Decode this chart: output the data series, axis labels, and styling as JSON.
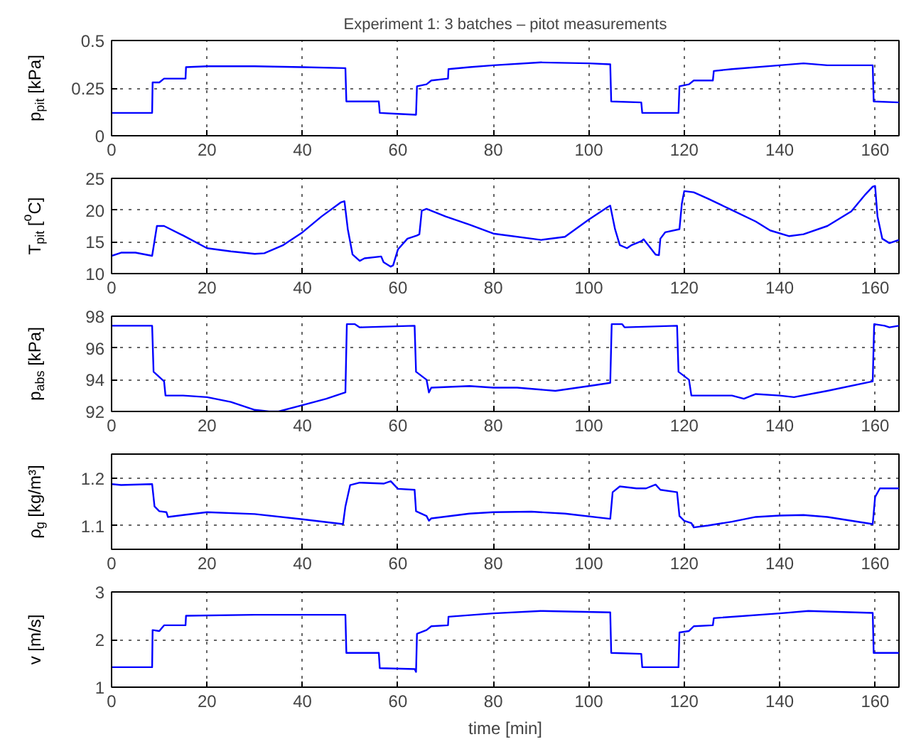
{
  "chart_data": [
    {
      "type": "line",
      "title": "Experiment 1: 3 batches – pitot measurements",
      "ylabel": "p$_{pit}$ [kPa]",
      "xlim": [
        0,
        165
      ],
      "xticks": [
        0,
        20,
        40,
        60,
        80,
        100,
        120,
        140,
        160
      ],
      "ylim": [
        0,
        0.5
      ],
      "yticks": [
        0,
        0.25,
        0.5
      ],
      "grid": true,
      "line_style": "solid",
      "series": [
        {
          "color": "#0000ff",
          "x": [
            0,
            8.5,
            8.6,
            10,
            11,
            15.5,
            15.6,
            20,
            30,
            40,
            49,
            49.2,
            56,
            56.2,
            60,
            63.8,
            64,
            66,
            67,
            70.5,
            70.6,
            75,
            80,
            90,
            100,
            104.5,
            104.7,
            111,
            111.2,
            118.8,
            119,
            121,
            122,
            126,
            126.2,
            130,
            140,
            145,
            150,
            159.5,
            159.7,
            165
          ],
          "values": [
            0.12,
            0.12,
            0.28,
            0.28,
            0.3,
            0.3,
            0.36,
            0.365,
            0.365,
            0.36,
            0.355,
            0.18,
            0.18,
            0.12,
            0.115,
            0.11,
            0.26,
            0.27,
            0.29,
            0.3,
            0.35,
            0.36,
            0.37,
            0.385,
            0.38,
            0.375,
            0.18,
            0.175,
            0.12,
            0.12,
            0.26,
            0.27,
            0.29,
            0.29,
            0.34,
            0.35,
            0.37,
            0.38,
            0.37,
            0.37,
            0.18,
            0.175
          ]
        }
      ]
    },
    {
      "type": "line",
      "ylabel": "T$_{pit}$ [$^{o}$C]",
      "xlim": [
        0,
        165
      ],
      "xticks": [
        0,
        20,
        40,
        60,
        80,
        100,
        120,
        140,
        160
      ],
      "ylim": [
        10,
        25
      ],
      "yticks": [
        10,
        15,
        20,
        25
      ],
      "grid": true,
      "line_style": "solid",
      "series": [
        {
          "color": "#0000ff",
          "x": [
            0,
            2,
            5,
            8.5,
            9.5,
            11,
            15,
            20,
            25,
            30,
            32,
            36,
            40,
            44,
            48,
            48.8,
            49.5,
            50.5,
            52,
            53,
            56.5,
            57,
            58.5,
            59,
            60,
            62,
            64,
            64.5,
            65,
            66,
            70,
            75,
            80,
            90,
            95,
            100,
            104,
            104.5,
            105.5,
            106.5,
            108,
            109,
            111,
            111.5,
            114,
            114.7,
            115,
            116,
            119,
            119.5,
            120,
            122,
            125,
            130,
            135,
            138,
            142,
            145,
            150,
            155,
            158,
            159.5,
            160,
            160.5,
            161.5,
            163,
            165
          ],
          "values": [
            12.8,
            13.3,
            13.3,
            12.8,
            17.5,
            17.5,
            16,
            14,
            13.5,
            13.1,
            13.2,
            14.5,
            16.5,
            19,
            21.2,
            21.4,
            17,
            13,
            12,
            12.4,
            12.7,
            11.8,
            11.1,
            11.3,
            13.8,
            15.5,
            16,
            16.2,
            19.9,
            20.2,
            19,
            17.7,
            16.3,
            15.3,
            15.8,
            18.5,
            20.5,
            20.7,
            17,
            14.5,
            14,
            14.5,
            15.1,
            15.4,
            13,
            12.9,
            15.5,
            16.5,
            17,
            21,
            23,
            22.8,
            21.8,
            20,
            18.2,
            16.8,
            15.9,
            16.2,
            17.5,
            19.8,
            22.5,
            23.7,
            23.8,
            19,
            15.5,
            14.8,
            15.3
          ]
        }
      ]
    },
    {
      "type": "line",
      "ylabel": "p$_{abs}$ [kPa]",
      "xlim": [
        0,
        165
      ],
      "xticks": [
        0,
        20,
        40,
        60,
        80,
        100,
        120,
        140,
        160
      ],
      "ylim": [
        92,
        98
      ],
      "yticks": [
        92,
        94,
        96,
        98
      ],
      "grid": true,
      "line_style": "solid",
      "series": [
        {
          "color": "#0000ff",
          "x": [
            0,
            8.5,
            8.8,
            11,
            11.3,
            15,
            20,
            25,
            30,
            33,
            35,
            40,
            45,
            49,
            49.3,
            51,
            52,
            63.5,
            63.8,
            66,
            66.5,
            67,
            75,
            80,
            85,
            93,
            100,
            104.5,
            104.8,
            107,
            107.5,
            118.5,
            118.8,
            121,
            121.5,
            125,
            130,
            132.5,
            135,
            140,
            143,
            150,
            159.5,
            159.8,
            162,
            163,
            165
          ],
          "values": [
            97.4,
            97.4,
            94.5,
            93.9,
            93.0,
            93.0,
            92.9,
            92.6,
            92.1,
            92.0,
            92.0,
            92.4,
            92.8,
            93.2,
            97.5,
            97.5,
            97.3,
            97.4,
            94.5,
            94.0,
            93.2,
            93.5,
            93.6,
            93.5,
            93.5,
            93.3,
            93.6,
            93.8,
            97.5,
            97.5,
            97.3,
            97.4,
            94.5,
            94.0,
            93.0,
            93.0,
            93.0,
            92.8,
            93.1,
            93.0,
            92.9,
            93.3,
            93.9,
            97.5,
            97.4,
            97.3,
            97.4
          ]
        }
      ]
    },
    {
      "type": "line",
      "ylabel": "ρ$_{g}$ [kg/m³]",
      "xlim": [
        0,
        165
      ],
      "xticks": [
        0,
        20,
        40,
        60,
        80,
        100,
        120,
        140,
        160
      ],
      "ylim": [
        1.05,
        1.25
      ],
      "yticks": [
        1.1,
        1.2
      ],
      "grid": true,
      "line_style": "solid",
      "series": [
        {
          "color": "#0000ff",
          "x": [
            0,
            2,
            8.5,
            9,
            10,
            11.5,
            11.8,
            15,
            20,
            30,
            40,
            48.5,
            49,
            50,
            52,
            57,
            58.5,
            60,
            63.5,
            63.8,
            66,
            66.5,
            67,
            75,
            80,
            88,
            95,
            104.5,
            105,
            106.5,
            110,
            112,
            114,
            115,
            118.5,
            119,
            120,
            121.5,
            122,
            125,
            130,
            135,
            140,
            145,
            150,
            159.5,
            160,
            161,
            165
          ],
          "values": [
            1.187,
            1.185,
            1.187,
            1.14,
            1.13,
            1.128,
            1.118,
            1.122,
            1.128,
            1.124,
            1.113,
            1.103,
            1.14,
            1.185,
            1.19,
            1.188,
            1.193,
            1.177,
            1.175,
            1.13,
            1.12,
            1.11,
            1.115,
            1.125,
            1.128,
            1.129,
            1.125,
            1.114,
            1.17,
            1.182,
            1.178,
            1.178,
            1.186,
            1.175,
            1.17,
            1.12,
            1.11,
            1.105,
            1.096,
            1.1,
            1.108,
            1.118,
            1.121,
            1.122,
            1.118,
            1.103,
            1.16,
            1.178,
            1.178
          ]
        }
      ]
    },
    {
      "type": "line",
      "xlabel": "time [min]",
      "ylabel": "v [m/s]",
      "xlim": [
        0,
        165
      ],
      "xticks": [
        0,
        20,
        40,
        60,
        80,
        100,
        120,
        140,
        160
      ],
      "ylim": [
        1,
        3
      ],
      "yticks": [
        1,
        2,
        3
      ],
      "grid": true,
      "line_style": "solid",
      "series": [
        {
          "color": "#0000ff",
          "x": [
            0,
            8.5,
            8.6,
            10,
            11,
            15.5,
            15.6,
            30,
            49,
            49.2,
            56,
            56.2,
            63.5,
            63.8,
            64,
            66,
            67,
            70.5,
            70.6,
            80,
            90,
            104.5,
            104.7,
            111,
            111.2,
            118.8,
            119,
            121,
            122,
            126,
            126.2,
            140,
            146,
            159.5,
            159.7,
            165
          ],
          "values": [
            1.42,
            1.42,
            2.2,
            2.18,
            2.3,
            2.3,
            2.5,
            2.52,
            2.52,
            1.72,
            1.72,
            1.4,
            1.38,
            1.32,
            2.12,
            2.2,
            2.28,
            2.3,
            2.48,
            2.55,
            2.6,
            2.57,
            1.72,
            1.7,
            1.42,
            1.42,
            2.15,
            2.18,
            2.28,
            2.3,
            2.45,
            2.55,
            2.6,
            2.56,
            1.72,
            1.72
          ]
        }
      ]
    }
  ]
}
